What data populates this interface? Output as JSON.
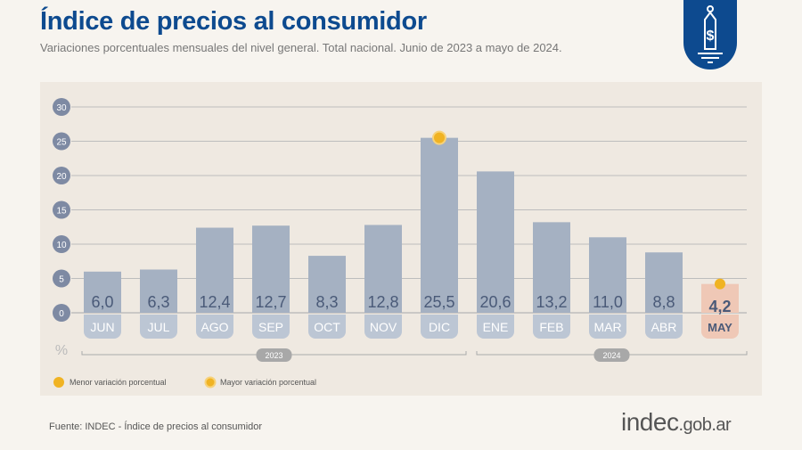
{
  "header": {
    "title": "Índice de precios al consumidor",
    "subtitle": "Variaciones porcentuales mensuales del nivel general. Total nacional. Junio de 2023 a mayo de 2024.",
    "icon": "price-tag-dollar-icon"
  },
  "chart_data": {
    "type": "bar",
    "categories": [
      "JUN",
      "JUL",
      "AGO",
      "SEP",
      "OCT",
      "NOV",
      "DIC",
      "ENE",
      "FEB",
      "MAR",
      "ABR",
      "MAY"
    ],
    "values": [
      6.0,
      6.3,
      12.4,
      12.7,
      8.3,
      12.8,
      25.5,
      20.6,
      13.2,
      11.0,
      8.8,
      4.2
    ],
    "value_labels": [
      "6,0",
      "6,3",
      "12,4",
      "12,7",
      "8,3",
      "12,8",
      "25,5",
      "20,6",
      "13,2",
      "11,0",
      "8,8",
      "4,2"
    ],
    "ylim": [
      0,
      30
    ],
    "yticks": [
      0,
      5,
      10,
      15,
      20,
      25,
      30
    ],
    "ylabel": "%",
    "grid": true,
    "year_groups": [
      {
        "label": "2023",
        "months": 7
      },
      {
        "label": "2024",
        "months": 5
      }
    ],
    "highlight_max": "DIC",
    "highlight_min": "MAY",
    "legend": {
      "placement": "bottom-left",
      "min_label": "Menor variación porcentual",
      "max_label": "Mayor variación porcentual"
    },
    "colors": {
      "bar": "#a5b1c2",
      "highlight_bar": "#efc8b6",
      "dot": "#f0b323",
      "text": "#4a5a78",
      "grid": "#bdbdbd"
    }
  },
  "footer": {
    "source": "Fuente: INDEC - Índice de precios al consumidor",
    "logo": "indec",
    "logo_suffix": ".gob.ar"
  }
}
